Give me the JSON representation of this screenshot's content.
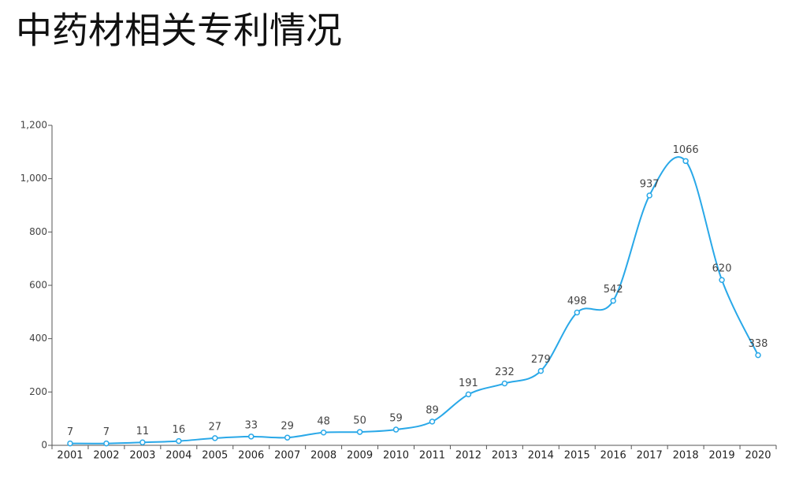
{
  "chart_data": {
    "type": "line",
    "title": "中药材相关专利情况",
    "categories": [
      "2001",
      "2002",
      "2003",
      "2004",
      "2005",
      "2006",
      "2007",
      "2008",
      "2009",
      "2010",
      "2011",
      "2012",
      "2013",
      "2014",
      "2015",
      "2016",
      "2017",
      "2018",
      "2019",
      "2020"
    ],
    "values": [
      7,
      7,
      11,
      16,
      27,
      33,
      29,
      48,
      50,
      59,
      89,
      191,
      232,
      279,
      498,
      542,
      937,
      1066,
      620,
      338
    ],
    "color": "#29a8e8",
    "ylim": [
      0,
      1200
    ],
    "yticks": [
      0,
      200,
      400,
      600,
      800,
      {
        "value": 1000,
        "label": "1,000"
      },
      {
        "value": 1200,
        "label": "1,200"
      }
    ]
  }
}
